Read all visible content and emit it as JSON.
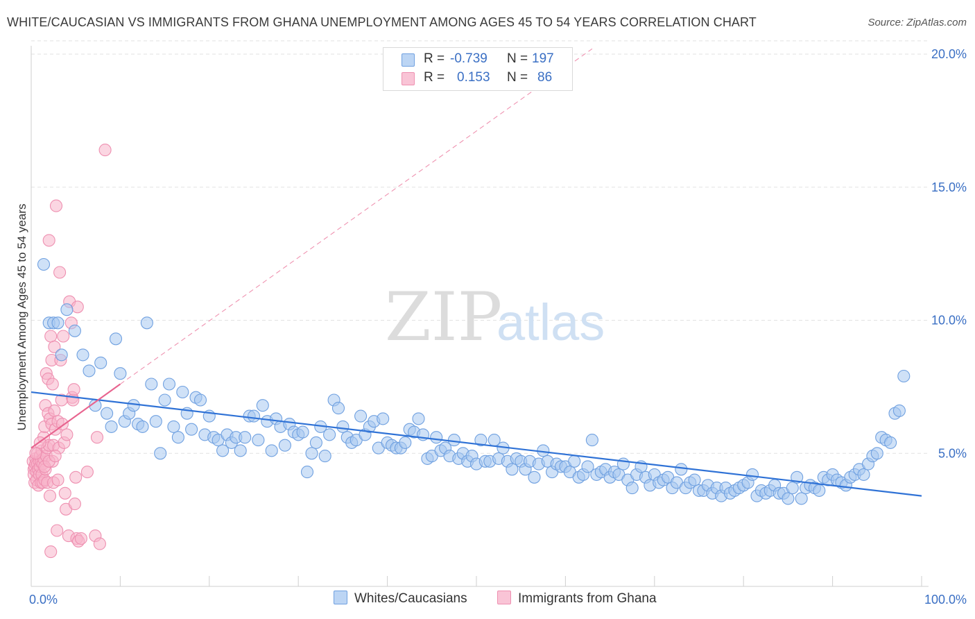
{
  "title": "WHITE/CAUCASIAN VS IMMIGRANTS FROM GHANA UNEMPLOYMENT AMONG AGES 45 TO 54 YEARS CORRELATION CHART",
  "source": "Source: ZipAtlas.com",
  "watermark": {
    "zip": "ZIP",
    "atlas": "atlas"
  },
  "legend_stats": [
    {
      "r_label": "R =",
      "r_value": "-0.739",
      "n_label": "N =",
      "n_value": "197"
    },
    {
      "r_label": "R =",
      "r_value": "0.153",
      "n_label": "N =",
      "n_value": "86"
    }
  ],
  "colors": {
    "blue_fill": "#a8c8f0",
    "blue_stroke": "#6fa0e0",
    "blue_line": "#2f72d6",
    "pink_fill": "#f7b5cb",
    "pink_stroke": "#ee8fb0",
    "pink_line": "#e8648f",
    "axis_label": "#3a6fc4",
    "grid": "#e2e2e2"
  },
  "chart_data": {
    "type": "scatter",
    "xlabel": "",
    "ylabel": "Unemployment Among Ages 45 to 54 years",
    "xlim": [
      0,
      100
    ],
    "ylim": [
      0,
      20
    ],
    "x_tick_labels": [
      "0.0%",
      "100.0%"
    ],
    "y_ticks": [
      5,
      10,
      15,
      20
    ],
    "y_tick_labels": [
      "5.0%",
      "10.0%",
      "15.0%",
      "20.0%"
    ],
    "grid": "horizontal dashed",
    "legend": "bottom-center",
    "series": [
      {
        "name": "Whites/Caucasians",
        "r": -0.739,
        "n": 197,
        "trend": {
          "x": [
            0,
            100
          ],
          "y": [
            7.3,
            3.4
          ]
        },
        "points": [
          [
            1.4,
            12.1
          ],
          [
            2.0,
            9.9
          ],
          [
            2.5,
            9.9
          ],
          [
            3.0,
            9.9
          ],
          [
            3.4,
            8.7
          ],
          [
            4.0,
            10.4
          ],
          [
            4.9,
            9.6
          ],
          [
            5.8,
            8.7
          ],
          [
            6.5,
            8.1
          ],
          [
            7.2,
            6.8
          ],
          [
            7.8,
            8.4
          ],
          [
            8.5,
            6.5
          ],
          [
            9.0,
            6.0
          ],
          [
            9.5,
            9.3
          ],
          [
            10.0,
            8.0
          ],
          [
            10.5,
            6.2
          ],
          [
            11.0,
            6.5
          ],
          [
            11.5,
            6.8
          ],
          [
            12.0,
            6.1
          ],
          [
            12.5,
            6.0
          ],
          [
            13.0,
            9.9
          ],
          [
            13.5,
            7.6
          ],
          [
            14.0,
            6.2
          ],
          [
            14.5,
            5.0
          ],
          [
            15.0,
            7.0
          ],
          [
            15.5,
            7.6
          ],
          [
            16.0,
            6.0
          ],
          [
            16.5,
            5.6
          ],
          [
            17.0,
            7.3
          ],
          [
            17.5,
            6.5
          ],
          [
            18.0,
            5.9
          ],
          [
            18.5,
            7.1
          ],
          [
            19.0,
            7.0
          ],
          [
            19.5,
            5.7
          ],
          [
            20.0,
            6.4
          ],
          [
            20.5,
            5.6
          ],
          [
            21.0,
            5.5
          ],
          [
            21.5,
            5.1
          ],
          [
            22.0,
            5.7
          ],
          [
            22.5,
            5.4
          ],
          [
            23.0,
            5.6
          ],
          [
            23.5,
            5.1
          ],
          [
            24.0,
            5.6
          ],
          [
            24.5,
            6.4
          ],
          [
            25.0,
            6.4
          ],
          [
            25.5,
            5.5
          ],
          [
            26.0,
            6.8
          ],
          [
            26.5,
            6.2
          ],
          [
            27.0,
            5.1
          ],
          [
            27.5,
            6.3
          ],
          [
            28.0,
            6.0
          ],
          [
            28.5,
            5.3
          ],
          [
            29.0,
            6.1
          ],
          [
            29.5,
            5.8
          ],
          [
            30.0,
            5.7
          ],
          [
            30.5,
            5.8
          ],
          [
            31.0,
            4.3
          ],
          [
            31.5,
            5.0
          ],
          [
            32.0,
            5.4
          ],
          [
            32.5,
            6.0
          ],
          [
            33.0,
            4.9
          ],
          [
            33.5,
            5.7
          ],
          [
            34.0,
            7.0
          ],
          [
            34.5,
            6.7
          ],
          [
            35.0,
            6.0
          ],
          [
            35.5,
            5.6
          ],
          [
            36.0,
            5.4
          ],
          [
            36.5,
            5.5
          ],
          [
            37.0,
            6.4
          ],
          [
            37.5,
            5.7
          ],
          [
            38.0,
            6.0
          ],
          [
            38.5,
            6.2
          ],
          [
            39.0,
            5.2
          ],
          [
            39.5,
            6.3
          ],
          [
            40.0,
            5.4
          ],
          [
            40.5,
            5.3
          ],
          [
            41.0,
            5.2
          ],
          [
            41.5,
            5.2
          ],
          [
            42.0,
            5.4
          ],
          [
            42.5,
            5.9
          ],
          [
            43.0,
            5.8
          ],
          [
            43.5,
            6.3
          ],
          [
            44.0,
            5.7
          ],
          [
            44.5,
            4.8
          ],
          [
            45.0,
            4.9
          ],
          [
            45.5,
            5.6
          ],
          [
            46.0,
            5.1
          ],
          [
            46.5,
            5.2
          ],
          [
            47.0,
            4.9
          ],
          [
            47.5,
            5.5
          ],
          [
            48.0,
            4.8
          ],
          [
            48.5,
            5.0
          ],
          [
            49.0,
            4.7
          ],
          [
            49.5,
            4.9
          ],
          [
            50.0,
            4.6
          ],
          [
            50.5,
            5.5
          ],
          [
            51.0,
            4.7
          ],
          [
            51.5,
            4.7
          ],
          [
            52.0,
            5.5
          ],
          [
            52.5,
            4.8
          ],
          [
            53.0,
            5.2
          ],
          [
            53.5,
            4.7
          ],
          [
            54.0,
            4.4
          ],
          [
            54.5,
            4.8
          ],
          [
            55.0,
            4.7
          ],
          [
            55.5,
            4.4
          ],
          [
            56.0,
            4.7
          ],
          [
            56.5,
            4.1
          ],
          [
            57.0,
            4.6
          ],
          [
            57.5,
            5.1
          ],
          [
            58.0,
            4.7
          ],
          [
            58.5,
            4.3
          ],
          [
            59.0,
            4.6
          ],
          [
            59.5,
            4.5
          ],
          [
            60.0,
            4.5
          ],
          [
            60.5,
            4.3
          ],
          [
            61.0,
            4.7
          ],
          [
            61.5,
            4.1
          ],
          [
            62.0,
            4.2
          ],
          [
            62.5,
            4.5
          ],
          [
            63.0,
            5.5
          ],
          [
            63.5,
            4.2
          ],
          [
            64.0,
            4.3
          ],
          [
            64.5,
            4.4
          ],
          [
            65.0,
            4.1
          ],
          [
            65.5,
            4.3
          ],
          [
            66.0,
            4.2
          ],
          [
            66.5,
            4.6
          ],
          [
            67.0,
            4.0
          ],
          [
            67.5,
            3.7
          ],
          [
            68.0,
            4.2
          ],
          [
            68.5,
            4.5
          ],
          [
            69.0,
            4.1
          ],
          [
            69.5,
            3.8
          ],
          [
            70.0,
            4.2
          ],
          [
            70.5,
            3.9
          ],
          [
            71.0,
            4.0
          ],
          [
            71.5,
            4.1
          ],
          [
            72.0,
            3.7
          ],
          [
            72.5,
            3.9
          ],
          [
            73.0,
            4.4
          ],
          [
            73.5,
            3.7
          ],
          [
            74.0,
            3.9
          ],
          [
            74.5,
            4.0
          ],
          [
            75.0,
            3.6
          ],
          [
            75.5,
            3.6
          ],
          [
            76.0,
            3.8
          ],
          [
            76.5,
            3.5
          ],
          [
            77.0,
            3.7
          ],
          [
            77.5,
            3.4
          ],
          [
            78.0,
            3.7
          ],
          [
            78.5,
            3.5
          ],
          [
            79.0,
            3.6
          ],
          [
            79.5,
            3.7
          ],
          [
            80.0,
            3.8
          ],
          [
            80.5,
            3.9
          ],
          [
            81.0,
            4.2
          ],
          [
            81.5,
            3.4
          ],
          [
            82.0,
            3.6
          ],
          [
            82.5,
            3.5
          ],
          [
            83.0,
            3.6
          ],
          [
            83.5,
            3.8
          ],
          [
            84.0,
            3.5
          ],
          [
            84.5,
            3.5
          ],
          [
            85.0,
            3.3
          ],
          [
            85.5,
            3.7
          ],
          [
            86.0,
            4.1
          ],
          [
            86.5,
            3.3
          ],
          [
            87.0,
            3.7
          ],
          [
            87.5,
            3.8
          ],
          [
            88.0,
            3.7
          ],
          [
            88.5,
            3.6
          ],
          [
            89.0,
            4.1
          ],
          [
            89.5,
            4.0
          ],
          [
            90.0,
            4.2
          ],
          [
            90.5,
            4.0
          ],
          [
            91.0,
            3.9
          ],
          [
            91.5,
            3.8
          ],
          [
            92.0,
            4.1
          ],
          [
            92.5,
            4.2
          ],
          [
            93.0,
            4.4
          ],
          [
            93.5,
            4.2
          ],
          [
            94.0,
            4.6
          ],
          [
            94.5,
            4.9
          ],
          [
            95.0,
            5.0
          ],
          [
            95.5,
            5.6
          ],
          [
            96.0,
            5.5
          ],
          [
            96.5,
            5.4
          ],
          [
            97.0,
            6.5
          ],
          [
            97.5,
            6.6
          ],
          [
            98.0,
            7.9
          ]
        ]
      },
      {
        "name": "Immigrants from Ghana",
        "r": 0.153,
        "n": 86,
        "trend": {
          "x": [
            0,
            10
          ],
          "y": [
            5.2,
            7.6
          ]
        },
        "trend_extended": {
          "x": [
            10,
            63
          ],
          "y": [
            7.6,
            20.2
          ]
        },
        "points": [
          [
            0.2,
            4.7
          ],
          [
            0.3,
            4.4
          ],
          [
            0.3,
            4.2
          ],
          [
            0.4,
            3.9
          ],
          [
            0.4,
            4.5
          ],
          [
            0.5,
            4.8
          ],
          [
            0.5,
            4.6
          ],
          [
            0.6,
            4.3
          ],
          [
            0.6,
            4.0
          ],
          [
            0.7,
            4.6
          ],
          [
            0.7,
            5.0
          ],
          [
            0.8,
            4.4
          ],
          [
            0.8,
            3.8
          ],
          [
            0.9,
            4.7
          ],
          [
            0.9,
            4.2
          ],
          [
            1.0,
            4.9
          ],
          [
            1.0,
            4.5
          ],
          [
            1.1,
            3.9
          ],
          [
            1.1,
            4.7
          ],
          [
            1.2,
            5.1
          ],
          [
            1.2,
            4.2
          ],
          [
            1.3,
            4.6
          ],
          [
            1.3,
            3.9
          ],
          [
            1.4,
            4.8
          ],
          [
            1.4,
            5.6
          ],
          [
            1.5,
            6.0
          ],
          [
            1.5,
            4.0
          ],
          [
            1.6,
            6.8
          ],
          [
            1.6,
            4.4
          ],
          [
            1.7,
            8.0
          ],
          [
            1.7,
            4.9
          ],
          [
            1.8,
            5.2
          ],
          [
            1.8,
            3.9
          ],
          [
            1.9,
            6.5
          ],
          [
            1.9,
            7.8
          ],
          [
            2.0,
            13.0
          ],
          [
            2.0,
            5.3
          ],
          [
            2.1,
            6.3
          ],
          [
            2.1,
            3.4
          ],
          [
            2.2,
            1.3
          ],
          [
            2.2,
            9.4
          ],
          [
            2.3,
            6.1
          ],
          [
            2.3,
            8.5
          ],
          [
            2.4,
            7.6
          ],
          [
            2.4,
            4.7
          ],
          [
            2.5,
            5.3
          ],
          [
            2.5,
            3.9
          ],
          [
            2.6,
            9.0
          ],
          [
            2.6,
            6.6
          ],
          [
            2.7,
            5.9
          ],
          [
            2.8,
            14.3
          ],
          [
            2.9,
            2.1
          ],
          [
            3.0,
            6.2
          ],
          [
            3.1,
            5.2
          ],
          [
            3.2,
            11.8
          ],
          [
            3.3,
            8.5
          ],
          [
            3.4,
            7.0
          ],
          [
            3.5,
            6.1
          ],
          [
            3.6,
            9.4
          ],
          [
            3.7,
            5.4
          ],
          [
            3.8,
            3.5
          ],
          [
            3.9,
            2.9
          ],
          [
            4.0,
            5.7
          ],
          [
            4.2,
            1.9
          ],
          [
            4.3,
            10.7
          ],
          [
            4.5,
            9.9
          ],
          [
            4.6,
            7.1
          ],
          [
            4.7,
            7.0
          ],
          [
            4.8,
            7.4
          ],
          [
            4.9,
            3.1
          ],
          [
            5.0,
            4.1
          ],
          [
            5.1,
            1.8
          ],
          [
            5.2,
            10.5
          ],
          [
            5.3,
            1.7
          ],
          [
            5.6,
            1.8
          ],
          [
            6.3,
            4.3
          ],
          [
            7.2,
            1.9
          ],
          [
            7.4,
            5.6
          ],
          [
            7.7,
            1.6
          ],
          [
            8.3,
            16.4
          ],
          [
            1.5,
            4.5
          ],
          [
            2.0,
            4.7
          ],
          [
            1.0,
            5.4
          ],
          [
            0.5,
            5.0
          ],
          [
            3.0,
            4.0
          ],
          [
            2.7,
            4.9
          ]
        ]
      }
    ]
  }
}
